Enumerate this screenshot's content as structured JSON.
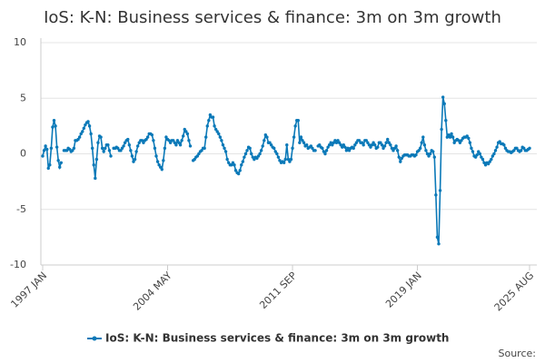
{
  "chart_data": {
    "type": "line",
    "title": "IoS: K-N: Business services & finance: 3m on 3m growth",
    "source": "Source:",
    "ylim": [
      -10,
      10
    ],
    "yticks": [
      -10,
      -5,
      0,
      5,
      10
    ],
    "grid": true,
    "legend": "bottom",
    "categories": [
      "1997 JAN",
      null,
      null,
      null,
      null,
      null,
      null,
      null,
      null,
      null,
      null,
      null,
      null,
      null,
      null,
      null,
      null,
      null,
      null,
      null,
      null,
      null,
      null,
      null,
      null,
      null,
      null,
      null,
      null,
      null,
      null,
      null,
      null,
      null,
      null,
      null,
      null,
      null,
      null,
      null,
      null,
      null,
      null,
      null,
      null,
      null,
      null,
      null,
      null,
      null,
      null,
      null,
      null,
      null,
      null,
      null,
      null,
      null,
      null,
      null,
      null,
      null,
      null,
      null,
      null,
      null,
      null,
      null,
      null,
      null,
      null,
      null,
      null,
      null,
      null,
      null,
      null,
      null,
      null,
      null,
      null,
      null,
      null,
      null,
      null,
      null,
      null,
      null,
      "2004 MAY",
      null,
      null,
      null,
      null,
      null,
      null,
      null,
      null,
      null,
      null,
      null,
      null,
      null,
      null,
      null,
      null,
      null,
      null,
      null,
      null,
      null,
      null,
      null,
      null,
      null,
      null,
      null,
      null,
      null,
      null,
      null,
      null,
      null,
      null,
      null,
      null,
      null,
      null,
      null,
      null,
      null,
      null,
      null,
      null,
      null,
      null,
      null,
      null,
      null,
      null,
      null,
      null,
      null,
      null,
      null,
      null,
      null,
      null,
      null,
      null,
      null,
      null,
      null,
      null,
      null,
      null,
      null,
      null,
      null,
      null,
      null,
      null,
      null,
      null,
      null,
      null,
      null,
      null,
      null,
      null,
      null,
      null,
      null,
      null,
      null,
      null,
      null,
      "2011 SEP",
      null,
      null,
      null,
      null,
      null,
      null,
      null,
      null,
      null,
      null,
      null,
      null,
      null,
      null,
      null,
      null,
      null,
      null,
      null,
      null,
      null,
      null,
      null,
      null,
      null,
      null,
      null,
      null,
      null,
      null,
      null,
      null,
      null,
      null,
      null,
      null,
      null,
      null,
      null,
      null,
      null,
      null,
      null,
      null,
      null,
      null,
      null,
      null,
      null,
      null,
      null,
      null,
      null,
      null,
      null,
      null,
      null,
      null,
      null,
      null,
      null,
      null,
      null,
      null,
      null,
      null,
      null,
      null,
      null,
      null,
      null,
      null,
      null,
      null,
      null,
      null,
      null,
      null,
      null,
      null,
      null,
      null,
      null,
      null,
      null,
      null,
      null,
      "2019 JAN",
      null,
      null,
      null,
      null,
      null,
      null,
      null,
      null,
      null,
      null,
      null,
      null,
      null,
      null,
      null,
      null,
      null,
      null,
      null,
      null,
      null,
      null,
      null,
      null,
      null,
      null,
      null,
      null,
      null,
      null,
      null,
      null,
      null,
      null,
      null,
      null,
      null,
      null,
      null,
      null,
      null,
      null,
      null,
      null,
      null,
      null,
      null,
      null,
      null,
      null,
      null,
      null,
      null,
      null,
      null,
      null,
      null,
      null,
      null,
      null,
      null,
      null,
      null,
      null,
      null,
      null,
      null,
      null,
      null,
      null,
      null,
      null,
      null,
      null,
      null,
      null,
      null,
      null,
      "2025 AUG"
    ],
    "series": [
      {
        "name": "IoS: K-N: Business services & finance: 3m on 3m growth",
        "color": "#0b79b8",
        "values": [
          -0.2,
          0.3,
          0.7,
          0.4,
          -1.3,
          -1.0,
          0.5,
          2.4,
          3.0,
          2.5,
          0.6,
          -0.6,
          -1.2,
          -0.8,
          null,
          0.3,
          0.3,
          0.3,
          0.5,
          0.4,
          0.2,
          0.3,
          0.5,
          1.2,
          1.2,
          1.3,
          1.5,
          1.8,
          2.0,
          2.3,
          2.6,
          2.8,
          2.9,
          2.5,
          1.8,
          0.5,
          -1.0,
          -2.2,
          -0.5,
          1.0,
          1.6,
          1.5,
          0.5,
          0.2,
          0.5,
          0.8,
          0.8,
          0.3,
          -0.2,
          null,
          0.5,
          0.5,
          0.6,
          0.5,
          0.3,
          0.3,
          0.5,
          0.7,
          1.0,
          1.2,
          1.3,
          0.8,
          0.3,
          -0.2,
          -0.7,
          -0.5,
          0.2,
          0.7,
          1.0,
          1.2,
          1.2,
          1.0,
          1.2,
          1.3,
          1.5,
          1.8,
          1.8,
          1.7,
          1.2,
          0.5,
          -0.2,
          -0.7,
          -1.0,
          -1.2,
          -1.4,
          -0.6,
          0.5,
          1.5,
          1.3,
          1.2,
          1.0,
          1.2,
          1.2,
          1.0,
          0.8,
          1.2,
          1.0,
          0.8,
          1.2,
          1.6,
          2.2,
          2.0,
          1.8,
          1.2,
          0.7,
          null,
          -0.6,
          -0.5,
          -0.3,
          -0.2,
          0.0,
          0.2,
          0.3,
          0.5,
          0.5,
          1.5,
          2.5,
          3.0,
          3.5,
          3.3,
          3.3,
          2.5,
          2.2,
          2.0,
          1.8,
          1.5,
          1.2,
          0.8,
          0.5,
          0.2,
          -0.5,
          -0.8,
          -1.0,
          -1.0,
          -0.8,
          -1.0,
          -1.5,
          -1.7,
          -1.8,
          -1.5,
          -1.0,
          -0.7,
          -0.3,
          0.0,
          0.3,
          0.6,
          0.5,
          0.0,
          -0.3,
          -0.5,
          -0.3,
          -0.4,
          -0.2,
          0.0,
          0.3,
          0.7,
          1.2,
          1.7,
          1.5,
          1.0,
          1.0,
          0.8,
          0.6,
          0.5,
          0.2,
          0.0,
          -0.3,
          -0.6,
          -0.8,
          -0.7,
          -0.8,
          -0.5,
          0.8,
          -0.5,
          -0.7,
          -0.5,
          0.5,
          1.5,
          2.5,
          3.0,
          3.0,
          1.0,
          1.5,
          1.2,
          1.0,
          0.7,
          0.8,
          0.5,
          0.6,
          0.7,
          0.5,
          0.3,
          0.3,
          null,
          0.7,
          0.8,
          0.6,
          0.5,
          0.2,
          0.0,
          0.3,
          0.6,
          0.8,
          1.0,
          0.8,
          1.0,
          1.2,
          1.0,
          1.2,
          1.0,
          0.8,
          0.6,
          0.8,
          0.6,
          0.3,
          0.5,
          0.3,
          0.5,
          0.6,
          0.5,
          0.8,
          1.0,
          1.2,
          1.2,
          1.0,
          1.0,
          0.8,
          1.2,
          1.2,
          1.0,
          0.8,
          0.6,
          0.8,
          1.0,
          0.8,
          0.5,
          0.6,
          1.0,
          1.0,
          0.8,
          0.5,
          0.7,
          1.0,
          1.3,
          1.0,
          0.8,
          0.5,
          0.3,
          0.5,
          0.7,
          0.3,
          -0.3,
          -0.7,
          -0.4,
          -0.2,
          -0.1,
          -0.1,
          -0.1,
          -0.2,
          -0.2,
          -0.1,
          -0.1,
          -0.2,
          -0.1,
          0.2,
          0.3,
          0.5,
          1.0,
          1.5,
          0.8,
          0.3,
          0.0,
          -0.2,
          0.0,
          0.3,
          0.2,
          -0.3,
          -3.7,
          -7.5,
          -8.1,
          -3.3,
          2.2,
          5.1,
          4.5,
          3.0,
          1.5,
          1.7,
          1.5,
          1.8,
          1.5,
          1.0,
          1.2,
          1.3,
          1.2,
          1.0,
          1.2,
          1.4,
          1.5,
          1.5,
          1.6,
          1.4,
          1.0,
          0.5,
          0.2,
          -0.2,
          -0.3,
          -0.1,
          0.2,
          0.0,
          -0.3,
          -0.5,
          -0.8,
          -1.0,
          -0.8,
          -0.9,
          -0.7,
          -0.5,
          -0.2,
          0.0,
          0.3,
          0.6,
          1.0,
          1.1,
          0.9,
          0.9,
          0.8,
          0.5,
          0.3,
          0.2,
          0.2,
          0.1,
          0.2,
          0.3,
          0.5,
          0.5,
          0.3,
          0.2,
          0.3,
          0.6,
          0.5,
          0.3,
          0.3,
          0.4,
          0.5
        ]
      }
    ]
  }
}
